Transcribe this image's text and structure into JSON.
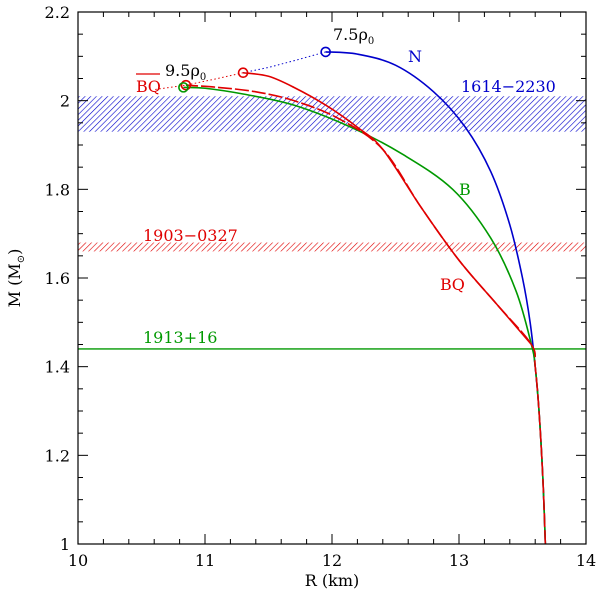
{
  "chart_data": {
    "type": "line",
    "xlabel": "R (km)",
    "ylabel": "M (M",
    "ylabel_sub": "⊙",
    "ylabel_close": ")",
    "xlim": [
      10,
      14
    ],
    "ylim": [
      1.0,
      2.2
    ],
    "xticks": [
      {
        "v": 10,
        "label": "10"
      },
      {
        "v": 11,
        "label": "11"
      },
      {
        "v": 12,
        "label": "12"
      },
      {
        "v": 13,
        "label": "13"
      },
      {
        "v": 14,
        "label": "14"
      }
    ],
    "yticks": [
      {
        "v": 1.0,
        "label": "1"
      },
      {
        "v": 1.2,
        "label": "1.2"
      },
      {
        "v": 1.4,
        "label": "1.4"
      },
      {
        "v": 1.6,
        "label": "1.6"
      },
      {
        "v": 1.8,
        "label": "1.8"
      },
      {
        "v": 2.0,
        "label": "2"
      },
      {
        "v": 2.2,
        "label": "2.2"
      }
    ],
    "colors": {
      "N": "#0000cc",
      "B": "#009900",
      "BQ": "#e00000"
    },
    "series": [
      {
        "name": "N",
        "label": "N",
        "color_key": "N",
        "x": [
          13.68,
          13.66,
          13.63,
          13.6,
          13.56,
          13.5,
          13.4,
          13.25,
          13.05,
          12.8,
          12.5,
          12.2,
          11.95
        ],
        "y": [
          1.0,
          1.15,
          1.3,
          1.4,
          1.5,
          1.6,
          1.72,
          1.84,
          1.94,
          2.02,
          2.08,
          2.105,
          2.11
        ]
      },
      {
        "name": "B",
        "label": "B",
        "color_key": "B",
        "x": [
          13.68,
          13.66,
          13.63,
          13.6,
          13.57,
          13.45,
          13.25,
          12.95,
          12.55,
          12.15,
          11.7,
          11.3,
          11.0,
          10.83
        ],
        "y": [
          1.0,
          1.15,
          1.3,
          1.4,
          1.45,
          1.57,
          1.69,
          1.8,
          1.88,
          1.94,
          1.99,
          2.015,
          2.028,
          2.03
        ]
      },
      {
        "name": "BQ",
        "label": "BQ",
        "color_key": "BQ",
        "x": [
          13.68,
          13.66,
          13.63,
          13.6,
          13.57,
          13.3,
          13.0,
          12.7,
          12.4,
          12.05,
          11.7,
          11.4,
          11.1,
          10.85
        ],
        "y": [
          1.0,
          1.15,
          1.3,
          1.4,
          1.45,
          1.54,
          1.64,
          1.76,
          1.89,
          1.96,
          2.0,
          2.02,
          2.03,
          2.035
        ],
        "dashed": true
      },
      {
        "name": "BQ upper branch",
        "label": "",
        "color_key": "BQ",
        "x": [
          13.57,
          13.3,
          13.0,
          12.7,
          12.4,
          12.2,
          11.95,
          11.7,
          11.5,
          11.3
        ],
        "y": [
          1.45,
          1.54,
          1.64,
          1.76,
          1.89,
          1.94,
          1.99,
          2.03,
          2.055,
          2.063
        ]
      }
    ],
    "max_markers": [
      {
        "x": 11.95,
        "y": 2.11,
        "color_key": "N"
      },
      {
        "x": 11.3,
        "y": 2.063,
        "color_key": "BQ"
      },
      {
        "x": 10.85,
        "y": 2.035,
        "color_key": "BQ"
      },
      {
        "x": 10.83,
        "y": 2.03,
        "color_key": "B"
      }
    ],
    "dotted_extensions": [
      {
        "color_key": "N",
        "x": [
          11.95,
          11.7,
          11.5,
          11.3
        ],
        "y": [
          2.11,
          2.09,
          2.075,
          2.063
        ]
      },
      {
        "color_key": "BQ",
        "x": [
          11.3,
          11.1,
          10.85,
          10.6
        ],
        "y": [
          2.063,
          2.05,
          2.035,
          2.025
        ]
      }
    ],
    "bands": [
      {
        "name": "1614-2230",
        "ymin": 1.93,
        "ymax": 2.01,
        "color_key": "N"
      },
      {
        "name": "1903-0327",
        "ymin": 1.66,
        "ymax": 1.68,
        "color_key": "BQ"
      }
    ],
    "hlines": [
      {
        "name": "1913+16",
        "y": 1.44,
        "color_key": "B"
      }
    ],
    "annotations": {
      "n_label": "N",
      "b_label": "B",
      "bq_label": "BQ",
      "bq_bar_label": "BQ",
      "rho_75": "7.5ρ",
      "rho_95": "9.5ρ",
      "rho_sub": "0",
      "band_label_1614": "1614−2230",
      "band_label_1903": "1903−0327",
      "line_label_1913": "1913+16"
    }
  }
}
